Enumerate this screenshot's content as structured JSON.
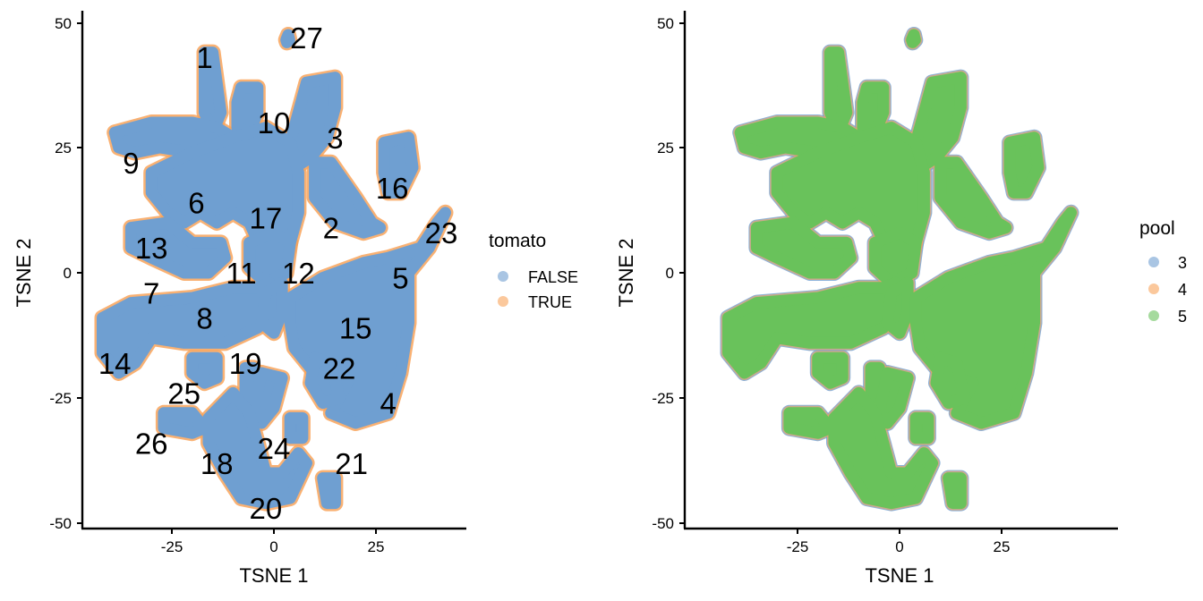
{
  "chart_data": [
    {
      "type": "scatter",
      "title": "",
      "xlabel": "TSNE 1",
      "ylabel": "TSNE 2",
      "xticks": [
        -25,
        0,
        25
      ],
      "yticks": [
        50,
        25,
        0,
        -25,
        -50
      ],
      "xlim": [
        -46,
        46
      ],
      "ylim": [
        -51,
        52
      ],
      "grid": false,
      "legend": {
        "title": "tomato",
        "position": "right",
        "entries": [
          {
            "label": "FALSE",
            "color": "#6f9fd1"
          },
          {
            "label": "TRUE",
            "color": "#f8a35a"
          }
        ]
      },
      "series": [
        {
          "name": "FALSE",
          "color": "#6f9fd1",
          "role": "majority (drawn on top)"
        },
        {
          "name": "TRUE",
          "color": "#f8a35a",
          "role": "minority (visible at cluster edges)"
        }
      ],
      "cluster_labels": [
        {
          "label": "1",
          "x": -17,
          "y": 43
        },
        {
          "label": "2",
          "x": 14,
          "y": 9
        },
        {
          "label": "3",
          "x": 15,
          "y": 27
        },
        {
          "label": "4",
          "x": 28,
          "y": -26
        },
        {
          "label": "5",
          "x": 31,
          "y": -1
        },
        {
          "label": "6",
          "x": -19,
          "y": 14
        },
        {
          "label": "7",
          "x": -30,
          "y": -4
        },
        {
          "label": "8",
          "x": -17,
          "y": -9
        },
        {
          "label": "9",
          "x": -35,
          "y": 22
        },
        {
          "label": "10",
          "x": 0,
          "y": 30
        },
        {
          "label": "11",
          "x": -8,
          "y": 0
        },
        {
          "label": "12",
          "x": 6,
          "y": 0
        },
        {
          "label": "13",
          "x": -30,
          "y": 5
        },
        {
          "label": "14",
          "x": -39,
          "y": -18
        },
        {
          "label": "15",
          "x": 20,
          "y": -11
        },
        {
          "label": "16",
          "x": 29,
          "y": 17
        },
        {
          "label": "17",
          "x": -2,
          "y": 11
        },
        {
          "label": "18",
          "x": -14,
          "y": -38
        },
        {
          "label": "19",
          "x": -7,
          "y": -18
        },
        {
          "label": "20",
          "x": -2,
          "y": -47
        },
        {
          "label": "21",
          "x": 19,
          "y": -38
        },
        {
          "label": "22",
          "x": 16,
          "y": -19
        },
        {
          "label": "23",
          "x": 41,
          "y": 8
        },
        {
          "label": "24",
          "x": 0,
          "y": -35
        },
        {
          "label": "25",
          "x": -22,
          "y": -24
        },
        {
          "label": "26",
          "x": -30,
          "y": -34
        },
        {
          "label": "27",
          "x": 8,
          "y": 47
        }
      ]
    },
    {
      "type": "scatter",
      "title": "",
      "xlabel": "TSNE 1",
      "ylabel": "TSNE 2",
      "xticks": [
        -25,
        0,
        25
      ],
      "yticks": [
        50,
        25,
        0,
        -25,
        -50
      ],
      "xlim": [
        -46,
        46
      ],
      "ylim": [
        -51,
        52
      ],
      "grid": false,
      "legend": {
        "title": "pool",
        "position": "right",
        "entries": [
          {
            "label": "3",
            "color": "#6f9fd1"
          },
          {
            "label": "4",
            "color": "#f8a35a"
          },
          {
            "label": "5",
            "color": "#69c25b"
          }
        ]
      },
      "series": [
        {
          "name": "3",
          "color": "#6f9fd1",
          "role": "minority (visible at cluster edges)"
        },
        {
          "name": "4",
          "color": "#f8a35a",
          "role": "minority (visible at cluster edges)"
        },
        {
          "name": "5",
          "color": "#69c25b",
          "role": "majority (drawn on top)"
        }
      ]
    }
  ],
  "panels": [
    {
      "xlabel": "TSNE 1",
      "ylabel": "TSNE 2",
      "xtick_labels": [
        "-25",
        "0",
        "25"
      ],
      "ytick_labels": [
        "50",
        "25",
        "0",
        "-25",
        "-50"
      ],
      "legend_title": "tomato",
      "legend_items": [
        "FALSE",
        "TRUE"
      ]
    },
    {
      "xlabel": "TSNE 1",
      "ylabel": "TSNE 2",
      "xtick_labels": [
        "-25",
        "0",
        "25"
      ],
      "ytick_labels": [
        "50",
        "25",
        "0",
        "-25",
        "-50"
      ],
      "legend_title": "pool",
      "legend_items": [
        "3",
        "4",
        "5"
      ]
    }
  ],
  "colors": {
    "blue": "#6f9fd1",
    "orange": "#f8a35a",
    "green": "#69c25b",
    "axis": "#000000"
  },
  "blobs": [
    {
      "pts": [
        [
          -17,
          44
        ],
        [
          -15,
          44
        ],
        [
          -14,
          38
        ],
        [
          -13,
          32
        ],
        [
          -15,
          28
        ],
        [
          -17,
          32
        ],
        [
          -17,
          40
        ]
      ]
    },
    {
      "pts": [
        [
          -8,
          37
        ],
        [
          -4,
          37
        ],
        [
          -4,
          32
        ],
        [
          -6,
          28
        ],
        [
          -9,
          29
        ],
        [
          -9,
          34
        ]
      ]
    },
    {
      "pts": [
        [
          8,
          38
        ],
        [
          15,
          39
        ],
        [
          15,
          33
        ],
        [
          13,
          27
        ],
        [
          9,
          23
        ],
        [
          5,
          21
        ],
        [
          4,
          26
        ],
        [
          6,
          32
        ]
      ]
    },
    {
      "pts": [
        [
          -39,
          28
        ],
        [
          -30,
          30
        ],
        [
          -20,
          30
        ],
        [
          -14,
          29
        ],
        [
          -10,
          27
        ],
        [
          -12,
          24
        ],
        [
          -20,
          24
        ],
        [
          -28,
          25
        ],
        [
          -34,
          24
        ],
        [
          -38,
          25
        ]
      ]
    },
    {
      "pts": [
        [
          -30,
          20
        ],
        [
          -20,
          24
        ],
        [
          -10,
          27
        ],
        [
          -2,
          29
        ],
        [
          4,
          26
        ],
        [
          6,
          20
        ],
        [
          6,
          12
        ],
        [
          4,
          6
        ],
        [
          2,
          0
        ],
        [
          -2,
          3
        ],
        [
          -6,
          10
        ],
        [
          -10,
          12
        ],
        [
          -14,
          10
        ],
        [
          -18,
          12
        ],
        [
          -22,
          10
        ],
        [
          -26,
          12
        ],
        [
          -30,
          16
        ]
      ]
    },
    {
      "pts": [
        [
          -35,
          9
        ],
        [
          -26,
          10
        ],
        [
          -20,
          6
        ],
        [
          -13,
          6
        ],
        [
          -12,
          3
        ],
        [
          -16,
          0
        ],
        [
          -22,
          0
        ],
        [
          -30,
          3
        ],
        [
          -35,
          5
        ]
      ]
    },
    {
      "pts": [
        [
          -6,
          6
        ],
        [
          0,
          8
        ],
        [
          4,
          6
        ],
        [
          3,
          0
        ],
        [
          -2,
          -2
        ],
        [
          -6,
          1
        ]
      ]
    },
    {
      "pts": [
        [
          10,
          22
        ],
        [
          14,
          22
        ],
        [
          20,
          15
        ],
        [
          24,
          10
        ],
        [
          26,
          9
        ],
        [
          22,
          8
        ],
        [
          15,
          10
        ],
        [
          10,
          15
        ]
      ]
    },
    {
      "pts": [
        [
          27,
          26
        ],
        [
          33,
          27
        ],
        [
          34,
          21
        ],
        [
          31,
          16
        ],
        [
          28,
          16
        ],
        [
          27,
          20
        ]
      ]
    },
    {
      "pts": [
        [
          -42,
          -9
        ],
        [
          -35,
          -6
        ],
        [
          -20,
          -5
        ],
        [
          -10,
          -3
        ],
        [
          -4,
          -3
        ],
        [
          -1,
          -2
        ],
        [
          0,
          -6
        ],
        [
          -4,
          -11
        ],
        [
          -12,
          -14
        ],
        [
          -22,
          -14
        ],
        [
          -30,
          -13
        ],
        [
          -34,
          -18
        ],
        [
          -38,
          -20
        ],
        [
          -42,
          -16
        ]
      ]
    },
    {
      "pts": [
        [
          -2,
          -4
        ],
        [
          2,
          -2
        ],
        [
          2,
          -8
        ],
        [
          0,
          -12
        ],
        [
          -3,
          -10
        ]
      ]
    },
    {
      "pts": [
        [
          4,
          -5
        ],
        [
          12,
          -1
        ],
        [
          22,
          2
        ],
        [
          28,
          3
        ],
        [
          36,
          5
        ],
        [
          40,
          10
        ],
        [
          42,
          12
        ],
        [
          38,
          5
        ],
        [
          33,
          0
        ],
        [
          33,
          -10
        ],
        [
          31,
          -20
        ],
        [
          28,
          -28
        ],
        [
          20,
          -30
        ],
        [
          14,
          -28
        ],
        [
          18,
          -22
        ],
        [
          10,
          -20
        ],
        [
          5,
          -15
        ],
        [
          4,
          -10
        ]
      ]
    },
    {
      "pts": [
        [
          10,
          -17
        ],
        [
          14,
          -18
        ],
        [
          16,
          -25
        ],
        [
          12,
          -26
        ],
        [
          9,
          -22
        ]
      ]
    },
    {
      "pts": [
        [
          -20,
          -17
        ],
        [
          -14,
          -17
        ],
        [
          -14,
          -21
        ],
        [
          -17,
          -22
        ],
        [
          -20,
          -20
        ]
      ]
    },
    {
      "pts": [
        [
          -7,
          -19
        ],
        [
          -5,
          -19
        ],
        [
          -5,
          -25
        ],
        [
          -7,
          -25
        ]
      ]
    },
    {
      "pts": [
        [
          -3,
          -20
        ],
        [
          2,
          -21
        ],
        [
          0,
          -27
        ],
        [
          -3,
          -30
        ],
        [
          -5,
          -28
        ]
      ]
    },
    {
      "pts": [
        [
          -27,
          -28
        ],
        [
          -20,
          -28
        ],
        [
          -17,
          -31
        ],
        [
          -20,
          -32
        ],
        [
          -27,
          -31
        ]
      ]
    },
    {
      "pts": [
        [
          -16,
          -29
        ],
        [
          -10,
          -24
        ],
        [
          -6,
          -28
        ],
        [
          -4,
          -34
        ],
        [
          -2,
          -40
        ],
        [
          2,
          -40
        ],
        [
          6,
          -36
        ],
        [
          8,
          -38
        ],
        [
          4,
          -45
        ],
        [
          -2,
          -46
        ],
        [
          -8,
          -45
        ],
        [
          -12,
          -40
        ],
        [
          -16,
          -34
        ]
      ]
    },
    {
      "pts": [
        [
          4,
          -29
        ],
        [
          7,
          -29
        ],
        [
          7,
          -33
        ],
        [
          4,
          -33
        ]
      ]
    },
    {
      "pts": [
        [
          12,
          -41
        ],
        [
          15,
          -41
        ],
        [
          15,
          -46
        ],
        [
          13,
          -46
        ]
      ]
    },
    {
      "pts": [
        [
          3,
          46.5
        ],
        [
          3.5,
          47.5
        ],
        [
          3.8,
          46.5
        ],
        [
          3.2,
          46
        ]
      ]
    }
  ]
}
